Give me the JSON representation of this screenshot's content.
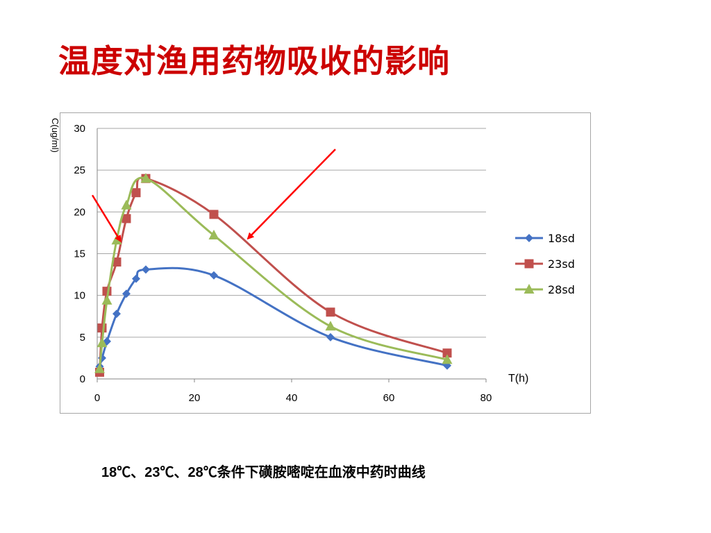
{
  "slide": {
    "title": "温度对渔用药物吸收的影响",
    "caption": "18℃、23℃、28℃条件下磺胺嘧啶在血液中药时曲线"
  },
  "chart_data": {
    "type": "line",
    "title": "",
    "xlabel": "T(h)",
    "ylabel": "C(ug/ml)",
    "xlim": [
      0,
      80
    ],
    "ylim": [
      0,
      30
    ],
    "xticks": [
      0,
      20,
      40,
      60,
      80
    ],
    "yticks": [
      0,
      5,
      10,
      15,
      20,
      25,
      30
    ],
    "grid": "horizontal",
    "legend": "right",
    "smooth": true,
    "series": [
      {
        "name": "18sd",
        "color": "#4472c4",
        "marker": "diamond",
        "x": [
          0.5,
          1,
          2,
          4,
          6,
          8,
          10,
          24,
          48,
          72
        ],
        "y": [
          1.5,
          2.5,
          4.5,
          7.8,
          10.2,
          12.0,
          13.1,
          12.4,
          5.0,
          1.6
        ]
      },
      {
        "name": "23sd",
        "color": "#c0504d",
        "marker": "square",
        "x": [
          0.5,
          1,
          2,
          4,
          6,
          8,
          10,
          24,
          48,
          72
        ],
        "y": [
          0.8,
          6.1,
          10.5,
          14.0,
          19.2,
          22.3,
          24.0,
          19.7,
          8.0,
          3.1
        ]
      },
      {
        "name": "28sd",
        "color": "#9bbb59",
        "marker": "triangle",
        "x": [
          0.5,
          1,
          2,
          4,
          6,
          10,
          24,
          48,
          72
        ],
        "y": [
          1.2,
          4.3,
          9.4,
          16.6,
          20.8,
          24.0,
          17.2,
          6.3,
          2.3
        ]
      }
    ],
    "annotations": [
      {
        "type": "arrow",
        "color": "#ff0000",
        "from": [
          -1,
          22
        ],
        "to": [
          4.8,
          16.5
        ]
      },
      {
        "type": "arrow",
        "color": "#ff0000",
        "from": [
          49,
          27.5
        ],
        "to": [
          31,
          16.8
        ]
      }
    ]
  }
}
